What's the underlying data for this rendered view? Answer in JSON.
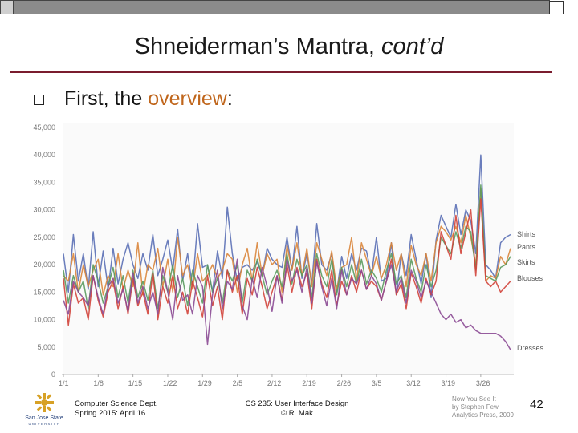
{
  "slide": {
    "title_main": "Shneiderman’s Mantra, ",
    "title_italic": "cont’d",
    "bullet_prefix": "First, the ",
    "bullet_highlight": "overview",
    "bullet_suffix": ":",
    "footer_left_line1": "Computer Science Dept.",
    "footer_left_line2": "Spring 2015: April 16",
    "footer_mid_line1": "CS 235: User Interface Design",
    "footer_mid_line2": "© R. Mak",
    "credit_line1": "Now You See It",
    "credit_line2": "by Stephen Few",
    "credit_line3": "Analytics Press, 2009",
    "page_number": "42",
    "logo_line1": "San José State",
    "logo_line2": "UNIVERSITY"
  },
  "colors": {
    "accent": "#7a1c2e",
    "highlight": "#c0661c"
  },
  "chart_data": {
    "type": "line",
    "x_tick_labels": [
      "1/1",
      "1/8",
      "1/15",
      "1/22",
      "1/29",
      "2/5",
      "2/12",
      "2/19",
      "2/26",
      "3/5",
      "3/12",
      "3/19",
      "3/26"
    ],
    "y_ticks": [
      0,
      5000,
      10000,
      15000,
      20000,
      25000,
      30000,
      35000,
      40000,
      45000
    ],
    "y_tick_labels": [
      "0",
      "5,000",
      "10,000",
      "15,000",
      "20,000",
      "25,000",
      "30,000",
      "35,000",
      "40,000",
      "45,000"
    ],
    "ylim": [
      0,
      45000
    ],
    "num_days": 91,
    "series": [
      {
        "name": "Shirts",
        "color": "#5a6fb5",
        "values": [
          22000,
          15000,
          25500,
          17000,
          22000,
          15500,
          26000,
          16000,
          22500,
          15500,
          23000,
          16500,
          21000,
          24000,
          20000,
          17500,
          22000,
          19000,
          25500,
          18000,
          21000,
          24500,
          19000,
          26500,
          17000,
          22000,
          16000,
          27500,
          19500,
          20000,
          15000,
          22500,
          17500,
          30500,
          22000,
          17000,
          19500,
          20000,
          19000,
          20500,
          18000,
          23000,
          21000,
          20000,
          19500,
          25000,
          19000,
          27000,
          17500,
          22000,
          16500,
          27500,
          20000,
          19000,
          22000,
          15000,
          21500,
          17500,
          22000,
          19000,
          23000,
          22500,
          18000,
          25000,
          17000,
          17500,
          24000,
          14500,
          22000,
          18000,
          25500,
          21000,
          16500,
          22000,
          14000,
          24500,
          29000,
          27000,
          25000,
          31000,
          25500,
          30000,
          28000,
          22000,
          40000,
          20000,
          19000,
          17500,
          24000,
          25000,
          25500
        ]
      },
      {
        "name": "Pants",
        "color": "#d9853b",
        "values": [
          18000,
          17000,
          22000,
          15000,
          20000,
          16000,
          19000,
          21000,
          14500,
          18000,
          16000,
          22000,
          15500,
          19000,
          16000,
          24000,
          14500,
          20000,
          19000,
          23000,
          16000,
          21000,
          15000,
          25000,
          18000,
          20000,
          15500,
          22000,
          17000,
          18000,
          20000,
          17500,
          19000,
          22000,
          21000,
          15000,
          20000,
          23000,
          17000,
          24000,
          18000,
          22000,
          20000,
          21000,
          15000,
          23500,
          19000,
          24000,
          18000,
          23000,
          16000,
          24000,
          21000,
          18000,
          22500,
          15500,
          19500,
          20000,
          25000,
          17000,
          24000,
          21000,
          18000,
          21500,
          17500,
          20000,
          24000,
          19000,
          22000,
          16000,
          23500,
          20000,
          18000,
          22000,
          17000,
          24000,
          27000,
          26000,
          24500,
          27000,
          24000,
          29000,
          25000,
          20000,
          34000,
          17000,
          18000,
          17500,
          21500,
          20000,
          23000
        ]
      },
      {
        "name": "Skirts",
        "color": "#5a9a5e",
        "values": [
          19000,
          13000,
          18000,
          15000,
          17000,
          12000,
          20000,
          17000,
          13000,
          16000,
          19500,
          14000,
          18000,
          13000,
          19000,
          14000,
          17000,
          13500,
          19000,
          12000,
          18000,
          15000,
          20000,
          14000,
          17500,
          12500,
          19000,
          16000,
          13000,
          20000,
          15000,
          17500,
          13000,
          19000,
          17000,
          20000,
          13000,
          19000,
          17000,
          21000,
          18000,
          14500,
          17000,
          19000,
          16000,
          22000,
          16500,
          21000,
          18000,
          20000,
          14000,
          22000,
          18000,
          16000,
          21000,
          14500,
          19500,
          16000,
          20000,
          16500,
          21000,
          16500,
          19000,
          17500,
          15000,
          19000,
          22000,
          16500,
          18000,
          14000,
          21000,
          17500,
          15000,
          20000,
          16000,
          19000,
          25000,
          23500,
          22000,
          26000,
          23000,
          27000,
          26000,
          19000,
          34500,
          18000,
          17500,
          17000,
          19500,
          20000,
          21500
        ]
      },
      {
        "name": "Blouses",
        "color": "#d2423a",
        "values": [
          17500,
          9000,
          16500,
          13000,
          14000,
          10000,
          18000,
          13500,
          10500,
          15000,
          17000,
          12000,
          16000,
          11000,
          17500,
          12500,
          15000,
          11000,
          18500,
          10000,
          16000,
          13000,
          18000,
          12000,
          15000,
          11000,
          17000,
          14000,
          10500,
          18000,
          12500,
          16000,
          10000,
          19000,
          15000,
          18000,
          11000,
          17500,
          14500,
          19500,
          16000,
          12000,
          15000,
          18000,
          13500,
          20000,
          15000,
          19500,
          16000,
          18500,
          12000,
          21000,
          16500,
          14000,
          19000,
          12500,
          17000,
          14500,
          18000,
          15000,
          19000,
          15500,
          17000,
          16000,
          13500,
          17000,
          21000,
          14500,
          16500,
          12000,
          18500,
          16000,
          13000,
          17500,
          14500,
          17000,
          26000,
          23500,
          21000,
          29000,
          22000,
          26000,
          30000,
          18000,
          32000,
          17000,
          16000,
          17000,
          15000,
          16000,
          17000
        ]
      },
      {
        "name": "Dresses",
        "color": "#8b4a94",
        "values": [
          13500,
          11000,
          17000,
          15000,
          14000,
          12500,
          18000,
          14000,
          11000,
          16000,
          17500,
          13000,
          15500,
          11500,
          18500,
          13000,
          16000,
          12000,
          15000,
          11000,
          19500,
          15000,
          10000,
          18000,
          13500,
          14500,
          11000,
          18000,
          16000,
          5500,
          14500,
          19000,
          12000,
          17000,
          15500,
          21000,
          12500,
          10000,
          17500,
          14000,
          19500,
          16000,
          11500,
          18000,
          13000,
          21000,
          17000,
          19000,
          15000,
          19500,
          13000,
          20500,
          16000,
          12500,
          17500,
          12000,
          19000,
          14500,
          17500,
          16500,
          19000,
          15500,
          18000,
          16500,
          13500,
          17000,
          20000,
          15000,
          17500,
          13000,
          19000,
          17000,
          14000,
          17000,
          15000,
          13000,
          11000,
          10000,
          11000,
          9500,
          10000,
          8500,
          9000,
          8000,
          7500,
          7500,
          7500,
          7500,
          7000,
          6000,
          4500
        ]
      }
    ]
  }
}
